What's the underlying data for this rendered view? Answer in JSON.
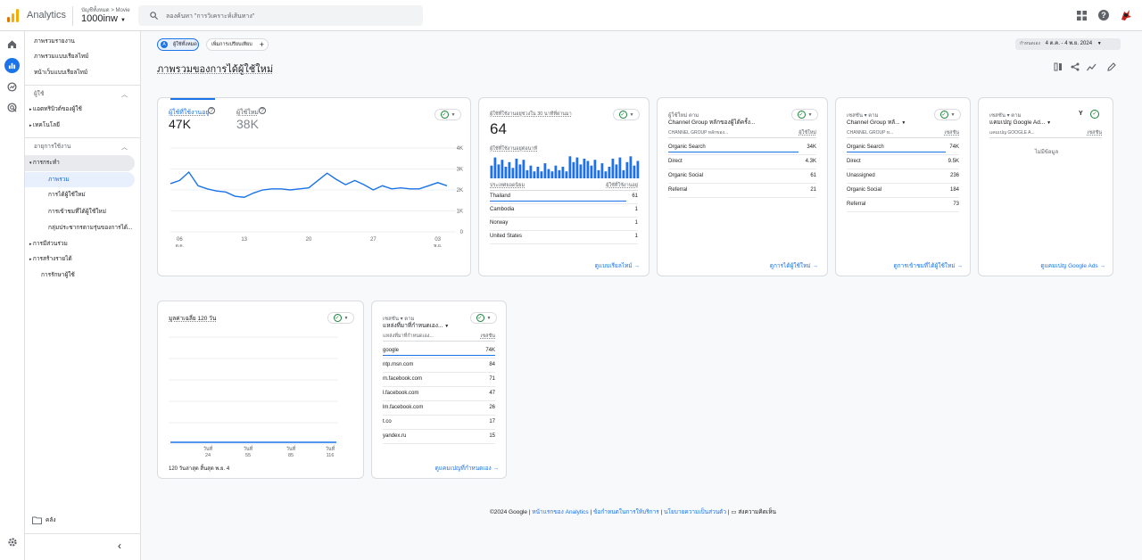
{
  "app": {
    "name": "Analytics",
    "account_path": "บัญชีทั้งหมด > Movie",
    "property": "1000inw",
    "search_placeholder": "ลองค้นหา \"การวิเคราะห์เส้นทาง\""
  },
  "colors": {
    "accent": "#1a73e8",
    "green": "#188038",
    "orange": "#f9ab00"
  },
  "nav": {
    "top": [
      "ภาพรวมรายงาน",
      "ภาพรวมแบบเรียลไทม์",
      "หน้าเว็บแบบเรียลไทม์"
    ],
    "user_section": "ผู้ใช้",
    "user_items": [
      "แอตทริบิวต์ของผู้ใช้",
      "เทคโนโลยี"
    ],
    "lifecycle_section": "อายุการใช้งาน",
    "acquisition": "การกระทำ",
    "acquisition_items": [
      "ภาพรวม",
      "การได้ผู้ใช้ใหม่",
      "การเข้าชมที่ได้ผู้ใช้ใหม่",
      "กลุ่มประชากรตามรุ่นของการได้..."
    ],
    "other_items": [
      "การมีส่วนร่วม",
      "การสร้างรายได้",
      "การรักษาผู้ใช้"
    ],
    "library": "คลัง"
  },
  "toolbar": {
    "all_users": "ผู้ใช้ทั้งหมด",
    "add_comparison": "เพิ่มการเปรียบเทียบ",
    "date_prefix": "กำหนดเอง",
    "date_range": "4 ต.ค. - 4 พ.ย. 2024"
  },
  "page_title": "ภาพรวมของการได้ผู้ใช้ใหม่",
  "card1": {
    "tab1_label": "ผู้ใช้ที่ใช้งานอยู่",
    "tab1_value": "47K",
    "tab2_label": "ผู้ใช้ใหม่",
    "tab2_value": "38K"
  },
  "chart_data": {
    "type": "line",
    "x": [
      "05 ต.ค.",
      "06 ต.ค.",
      "07 ต.ค.",
      "08 ต.ค.",
      "09 ต.ค.",
      "10 ต.ค.",
      "11 ต.ค.",
      "12 ต.ค.",
      "13 ต.ค.",
      "14 ต.ค.",
      "15 ต.ค.",
      "16 ต.ค.",
      "17 ต.ค.",
      "18 ต.ค.",
      "19 ต.ค.",
      "20 ต.ค.",
      "21 ต.ค.",
      "22 ต.ค.",
      "23 ต.ค.",
      "24 ต.ค.",
      "25 ต.ค.",
      "26 ต.ค.",
      "27 ต.ค.",
      "28 ต.ค.",
      "29 ต.ค.",
      "30 ต.ค.",
      "31 ต.ค.",
      "01 พ.ย.",
      "02 พ.ย.",
      "03 พ.ย.",
      "04 พ.ย."
    ],
    "series": [
      {
        "values": [
          2300,
          2450,
          2850,
          2200,
          2050,
          1950,
          1900,
          1700,
          1650,
          1850,
          2000,
          2050,
          2050,
          2000,
          2050,
          2100,
          2450,
          2800,
          2500,
          2250,
          2450,
          2250,
          2000,
          2200,
          2050,
          2100,
          2050,
          2050,
          2200,
          2350,
          2200
        ]
      }
    ],
    "x_ticks": [
      {
        "day": "06",
        "month": "ต.ค."
      },
      {
        "day": "13",
        "month": ""
      },
      {
        "day": "20",
        "month": ""
      },
      {
        "day": "27",
        "month": ""
      },
      {
        "day": "03",
        "month": "พ.ย."
      }
    ],
    "y_ticks": [
      "4K",
      "3K",
      "2K",
      "1K",
      "0"
    ],
    "ylim": [
      0,
      4000
    ]
  },
  "card2": {
    "title": "ผู้ใช้ที่ใช้งานอยู่ช่วงใน 30 นาทีที่ผ่านมา",
    "value": "64",
    "sub": "ผู้ใช้ที่ใช้งานอยู่ต่อนาที",
    "bars": [
      0.55,
      0.9,
      0.6,
      0.8,
      0.5,
      0.7,
      0.45,
      0.85,
      0.6,
      0.8,
      0.35,
      0.55,
      0.3,
      0.5,
      0.3,
      0.65,
      0.4,
      0.3,
      0.55,
      0.35,
      0.5,
      0.3,
      0.95,
      0.7,
      0.9,
      0.6,
      0.85,
      0.75,
      0.55,
      0.8,
      0.35,
      0.65,
      0.3,
      0.5,
      0.85,
      0.6,
      0.9,
      0.35,
      0.7,
      0.95,
      0.55,
      0.75
    ],
    "col1": "ประเทศยอดนิยม",
    "col2": "ผู้ใช้ที่ใช้งานอยู่",
    "rows": [
      {
        "k": "Thailand",
        "v": "61"
      },
      {
        "k": "Cambodia",
        "v": "1"
      },
      {
        "k": "Norway",
        "v": "1"
      },
      {
        "k": "United States",
        "v": "1"
      }
    ],
    "link": "ดูแบบเรียลไทม์"
  },
  "card3": {
    "title": "ผู้ใช้ใหม่ ตาม",
    "dim": "Channel Group หลักของผู้ได้ครั้ง...",
    "col1": "CHANNEL GROUP หลักของ...",
    "col2": "ผู้ใช้ใหม่",
    "rows": [
      {
        "k": "Organic Search",
        "v": "34K"
      },
      {
        "k": "Direct",
        "v": "4.3K"
      },
      {
        "k": "Organic Social",
        "v": "61"
      },
      {
        "k": "Referral",
        "v": "21"
      }
    ],
    "link": "ดูการได้ผู้ใช้ใหม่"
  },
  "card4": {
    "title": "เซสชัน ▾ ตาม",
    "dim": "Channel Group หลั...",
    "col1": "CHANNEL GROUP ห...",
    "col2": "เซสชัน",
    "rows": [
      {
        "k": "Organic Search",
        "v": "74K"
      },
      {
        "k": "Direct",
        "v": "9.5K"
      },
      {
        "k": "Unassigned",
        "v": "236"
      },
      {
        "k": "Organic Social",
        "v": "184"
      },
      {
        "k": "Referral",
        "v": "73"
      }
    ],
    "link": "ดูการเข้าชมที่ได้ผู้ใช้ใหม่"
  },
  "card5": {
    "title": "เซสชัน ▾ ตาม",
    "dim": "แคมเปญ Google Ad...",
    "col1": "แคมเปญ GOOGLE A...",
    "col2": "เซสชัน",
    "empty": "ไม่มีข้อมูล",
    "link": "ดูแคมเปญ Google Ads",
    "badge": "Y"
  },
  "card6": {
    "title": "มูลค่าเฉลี่ย 120 วัน",
    "x_ticks": [
      {
        "l": "วันที่",
        "v": "24"
      },
      {
        "l": "วันที่",
        "v": "55"
      },
      {
        "l": "วันที่",
        "v": "85"
      },
      {
        "l": "วันที่",
        "v": "116"
      }
    ],
    "footer": "120 วันล่าสุด สิ้นสุด พ.ย. 4"
  },
  "card7": {
    "title": "เซสชัน ▾ ตาม",
    "dim": "แหล่งที่มาที่กำหนดเอง...",
    "col1": "แหล่งที่มาที่กำหนดเอง...",
    "col2": "เซสชัน",
    "rows": [
      {
        "k": "google",
        "v": "74K"
      },
      {
        "k": "ntp.msn.com",
        "v": "84"
      },
      {
        "k": "m.facebook.com",
        "v": "71"
      },
      {
        "k": "l.facebook.com",
        "v": "47"
      },
      {
        "k": "lm.facebook.com",
        "v": "26"
      },
      {
        "k": "t.co",
        "v": "17"
      },
      {
        "k": "yandex.ru",
        "v": "15"
      }
    ],
    "link": "ดูแคมเปญที่กำหนดเอง"
  },
  "footer": {
    "copy": "©2024 Google |",
    "l1": "หน้าแรกของ Analytics",
    "sep1": "|",
    "l2": "ข้อกำหนดในการให้บริการ",
    "sep2": "|",
    "l3": "นโยบายความเป็นส่วนตัว",
    "sep3": "|",
    "l4": "ส่งความคิดเห็น"
  }
}
